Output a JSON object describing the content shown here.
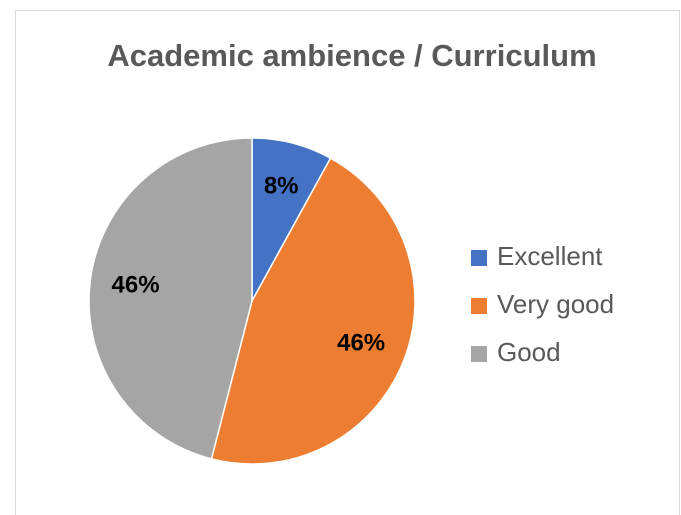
{
  "chart_data": {
    "type": "pie",
    "title": "Academic ambience / Curriculum",
    "categories": [
      "Excellent",
      "Very good",
      "Good"
    ],
    "values": [
      8,
      46,
      46
    ],
    "value_labels": [
      "8%",
      "46%",
      "46%"
    ],
    "colors": [
      "#4472c4",
      "#ed7d31",
      "#a5a5a5"
    ],
    "legend": "right"
  }
}
